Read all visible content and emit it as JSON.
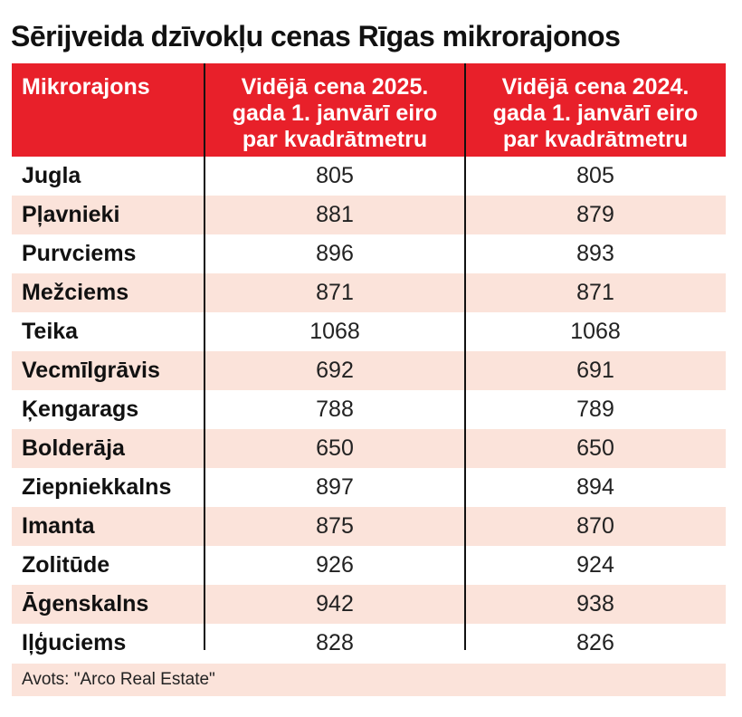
{
  "title": "Sērijveida dzīvokļu cenas Rīgas mikrorajonos",
  "colors": {
    "header_bg": "#e8202a",
    "stripe_bg": "#fbe3da"
  },
  "table": {
    "headers": {
      "district": "Mikrorajons",
      "price_2025": [
        "Vidējā cena 2025.",
        "gada 1. janvārī eiro",
        "par kvadrātmetru"
      ],
      "price_2024": [
        "Vidējā cena 2024.",
        "gada 1. janvārī eiro",
        "par kvadrātmetru"
      ]
    },
    "rows": [
      {
        "district": "Jugla",
        "price_2025": "805",
        "price_2024": "805"
      },
      {
        "district": "Pļavnieki",
        "price_2025": "881",
        "price_2024": "879"
      },
      {
        "district": "Purvciems",
        "price_2025": "896",
        "price_2024": "893"
      },
      {
        "district": "Mežciems",
        "price_2025": "871",
        "price_2024": "871"
      },
      {
        "district": "Teika",
        "price_2025": "1068",
        "price_2024": "1068"
      },
      {
        "district": "Vecmīlgrāvis",
        "price_2025": "692",
        "price_2024": "691"
      },
      {
        "district": "Ķengarags",
        "price_2025": "788",
        "price_2024": "789"
      },
      {
        "district": "Bolderāja",
        "price_2025": "650",
        "price_2024": "650"
      },
      {
        "district": "Ziepniekkalns",
        "price_2025": "897",
        "price_2024": "894"
      },
      {
        "district": "Imanta",
        "price_2025": "875",
        "price_2024": "870"
      },
      {
        "district": "Zolitūde",
        "price_2025": "926",
        "price_2024": "924"
      },
      {
        "district": "Āgenskalns",
        "price_2025": "942",
        "price_2024": "938"
      },
      {
        "district": "Iļģuciems",
        "price_2025": "828",
        "price_2024": "826"
      }
    ]
  },
  "source": "Avots: \"Arco Real Estate\""
}
